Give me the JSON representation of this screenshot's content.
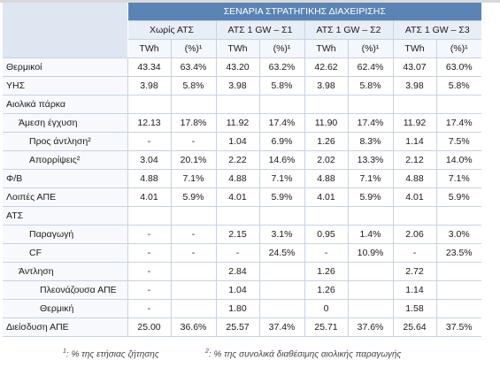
{
  "title": "ΣΕΝΑΡΙΑ ΣΤΡΑΤΗΓΙΚΗΣ ΔΙΑΧΕΙΡΙΣΗΣ",
  "scenarios": [
    "Χωρίς ΑΤΣ",
    "ΑΤΣ 1 GW – Σ1",
    "ΑΤΣ 1 GW – Σ2",
    "ΑΤΣ 1 GW – Σ3"
  ],
  "units": [
    "TWh",
    "(%)¹",
    "TWh",
    "(%)¹",
    "TWh",
    "(%)¹",
    "TWh",
    "(%)¹"
  ],
  "rows": [
    {
      "label": "Θερμικοί",
      "level": 0,
      "values": [
        "43.34",
        "63.4%",
        "43.20",
        "63.2%",
        "42.62",
        "62.4%",
        "43.07",
        "63.0%"
      ]
    },
    {
      "label": "ΥΗΣ",
      "level": 0,
      "values": [
        "3.98",
        "5.8%",
        "3.98",
        "5.8%",
        "3.98",
        "5.8%",
        "3.98",
        "5.8%"
      ]
    },
    {
      "label": "Αιολικά πάρκα",
      "level": 0,
      "values": [
        "",
        "",
        "",
        "",
        "",
        "",
        "",
        ""
      ]
    },
    {
      "label": "Άμεση έγχυση",
      "level": 1,
      "values": [
        "12.13",
        "17.8%",
        "11.92",
        "17.4%",
        "11.90",
        "17.4%",
        "11.92",
        "17.4%"
      ]
    },
    {
      "label": "Προς άντληση²",
      "level": 2,
      "values": [
        "-",
        "-",
        "1.04",
        "6.9%",
        "1.26",
        "8.3%",
        "1.14",
        "7.5%"
      ]
    },
    {
      "label": "Απορρίψεις²",
      "level": 2,
      "values": [
        "3.04",
        "20.1%",
        "2.22",
        "14.6%",
        "2.02",
        "13.3%",
        "2.12",
        "14.0%"
      ]
    },
    {
      "label": "Φ/Β",
      "level": 0,
      "values": [
        "4.88",
        "7.1%",
        "4.88",
        "7.1%",
        "4.88",
        "7.1%",
        "4.88",
        "7.1%"
      ]
    },
    {
      "label": "Λοιπές ΑΠΕ",
      "level": 0,
      "values": [
        "4.01",
        "5.9%",
        "4.01",
        "5.9%",
        "4.01",
        "5.9%",
        "4.01",
        "5.9%"
      ]
    },
    {
      "label": "ΑΤΣ",
      "level": 0,
      "values": [
        "",
        "",
        "",
        "",
        "",
        "",
        "",
        ""
      ]
    },
    {
      "label": "Παραγωγή",
      "level": 2,
      "values": [
        "-",
        "-",
        "2.15",
        "3.1%",
        "0.95",
        "1.4%",
        "2.06",
        "3.0%"
      ]
    },
    {
      "label": "CF",
      "level": 2,
      "values": [
        "-",
        "-",
        "-",
        "24.5%",
        "-",
        "10.9%",
        "-",
        "23.5%"
      ]
    },
    {
      "label": "Άντληση",
      "level": 1,
      "values": [
        "-",
        "",
        "2.84",
        "",
        "1.26",
        "",
        "2.72",
        ""
      ]
    },
    {
      "label": "Πλεονάζουσα ΑΠΕ",
      "level": 3,
      "values": [
        "-",
        "",
        "1.04",
        "",
        "1.26",
        "",
        "1.14",
        ""
      ]
    },
    {
      "label": "Θερμική",
      "level": 3,
      "values": [
        "-",
        "",
        "1.80",
        "",
        "0",
        "",
        "1.58",
        ""
      ]
    },
    {
      "label": "Διείσδυση ΑΠΕ",
      "level": 0,
      "values": [
        "25.00",
        "36.6%",
        "25.57",
        "37.4%",
        "25.71",
        "37.6%",
        "25.64",
        "37.5%"
      ]
    }
  ],
  "footnotes": {
    "note1_mark": "1",
    "note1_text": ": % της ετήσιας ζήτησης",
    "note2_mark": "2",
    "note2_text": ": % της συνολικά διαθέσιμης αιολικής παραγωγής"
  }
}
